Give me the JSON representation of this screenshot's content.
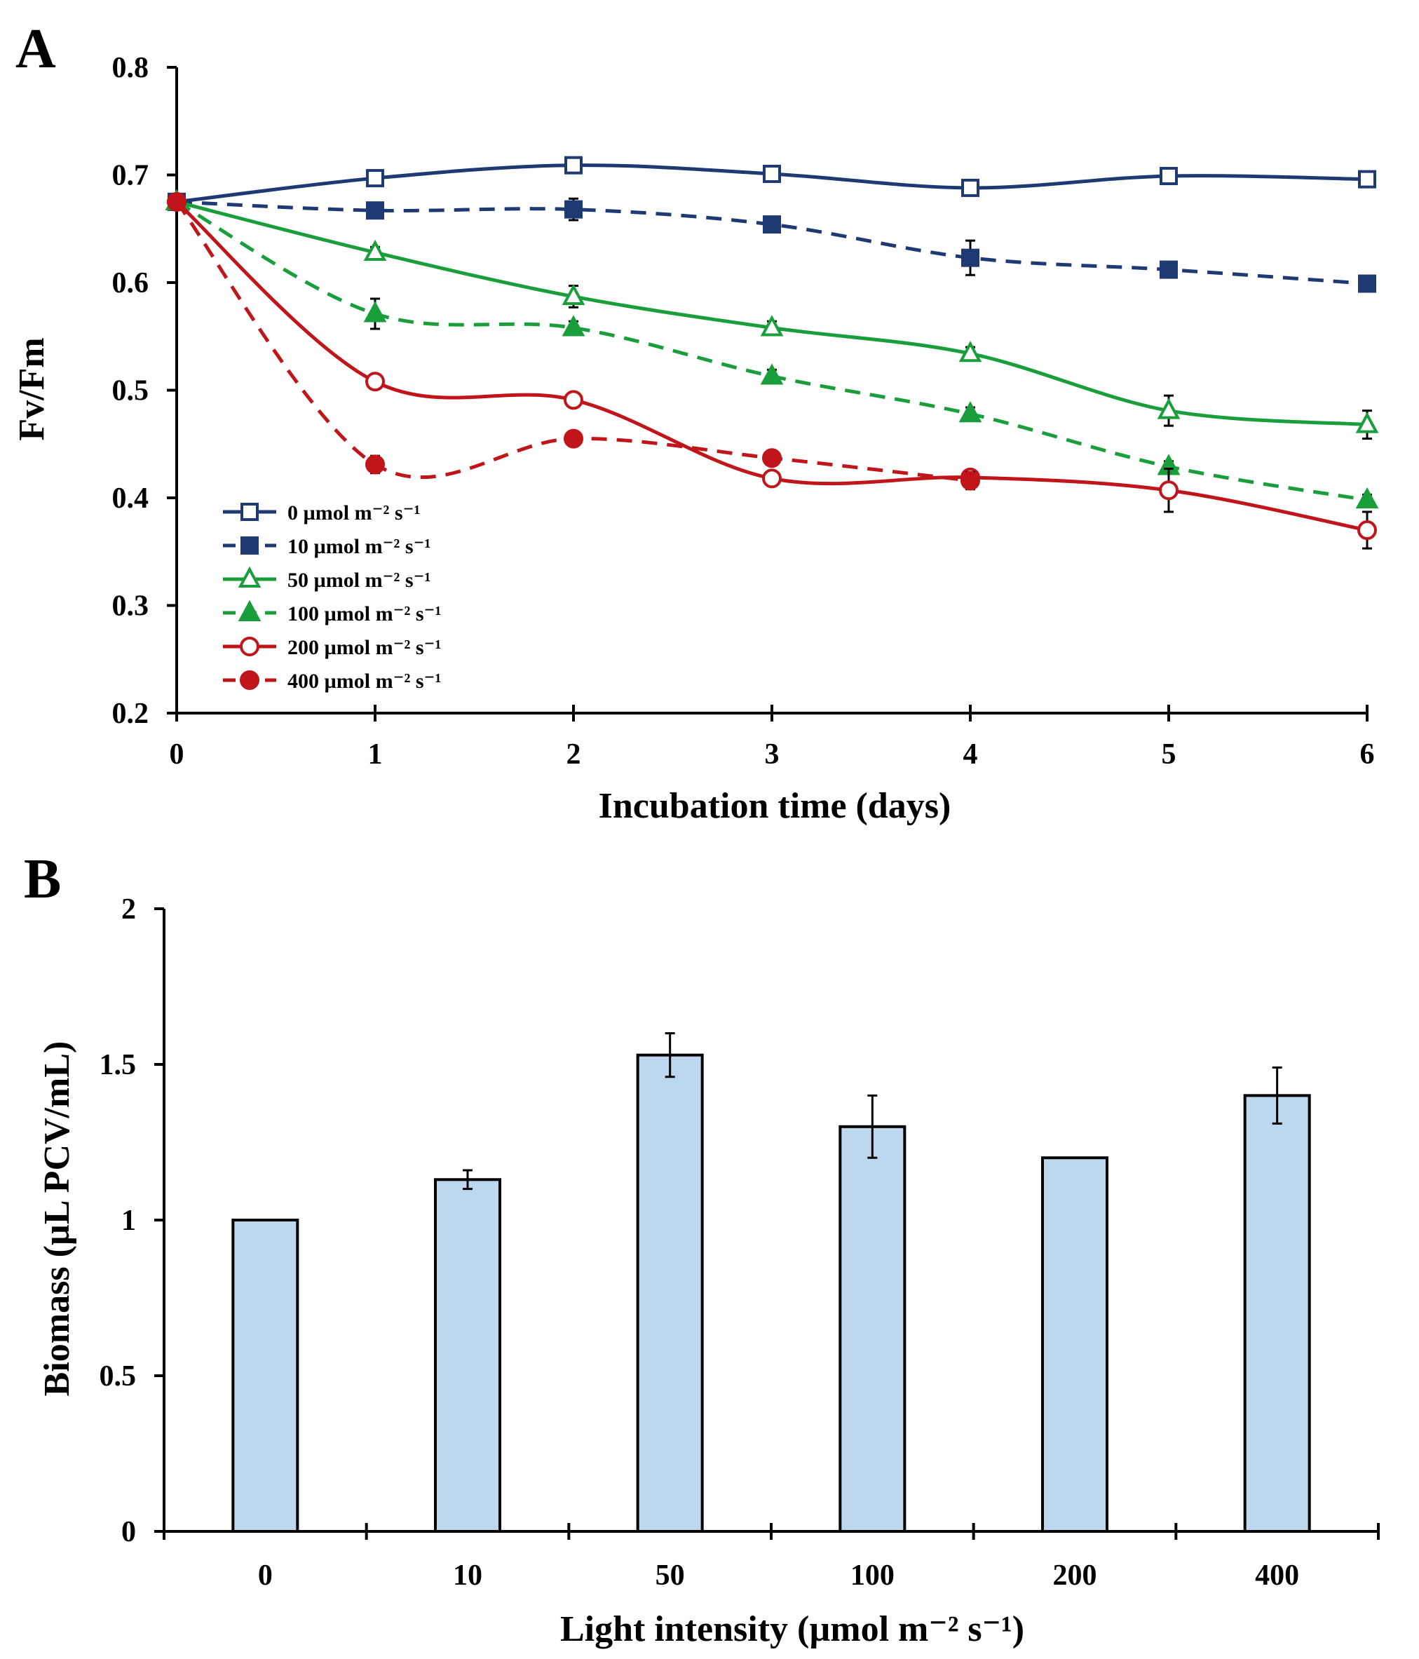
{
  "chart_data": [
    {
      "panel": "A",
      "type": "line",
      "xlabel": "Incubation time (days)",
      "ylabel": "Fv/Fm",
      "x": [
        0,
        1,
        2,
        3,
        4,
        5,
        6
      ],
      "xticks": [
        "0",
        "1",
        "2",
        "3",
        "4",
        "5",
        "6"
      ],
      "ylim": [
        0.2,
        0.8
      ],
      "yticks": [
        "0.2",
        "0.3",
        "0.4",
        "0.5",
        "0.6",
        "0.7",
        "0.8"
      ],
      "grid": false,
      "legend_position": "bottom-left",
      "series": [
        {
          "name": "0 µmol m⁻² s⁻¹",
          "color": "#1F3A73",
          "marker": "square-open",
          "dash": false,
          "values": [
            0.675,
            0.697,
            0.709,
            0.701,
            0.688,
            0.699,
            0.696
          ],
          "errors": [
            0,
            0.004,
            0.004,
            0.004,
            0.005,
            0.004,
            0.004
          ]
        },
        {
          "name": "10 µmol m⁻² s⁻¹",
          "color": "#1F3A73",
          "marker": "square-filled",
          "dash": true,
          "values": [
            0.675,
            0.667,
            0.668,
            0.654,
            0.623,
            0.612,
            0.599
          ],
          "errors": [
            0,
            0.005,
            0.01,
            0.006,
            0.016,
            0.006,
            0.004
          ]
        },
        {
          "name": "50 µmol m⁻² s⁻¹",
          "color": "#1A9E3C",
          "marker": "triangle-open",
          "dash": false,
          "values": [
            0.675,
            0.628,
            0.587,
            0.558,
            0.534,
            0.481,
            0.468
          ],
          "errors": [
            0,
            0.005,
            0.01,
            0.006,
            0.006,
            0.014,
            0.013
          ]
        },
        {
          "name": "100 µmol m⁻² s⁻¹",
          "color": "#1A9E3C",
          "marker": "triangle-filled",
          "dash": true,
          "values": [
            0.675,
            0.571,
            0.558,
            0.513,
            0.478,
            0.429,
            0.398
          ],
          "errors": [
            0,
            0.014,
            0.006,
            0.006,
            0.006,
            0.005,
            0.005
          ]
        },
        {
          "name": "200 µmol m⁻² s⁻¹",
          "color": "#C0151B",
          "marker": "circle-open",
          "dash": false,
          "values": [
            0.675,
            0.508,
            0.491,
            0.418,
            0.419,
            0.407,
            0.37
          ],
          "errors": [
            0,
            0.005,
            0.004,
            0.004,
            0.005,
            0.02,
            0.017
          ]
        },
        {
          "name": "400 µmol m⁻² s⁻¹",
          "color": "#C0151B",
          "marker": "circle-filled",
          "dash": true,
          "values": [
            0.675,
            0.431,
            0.455,
            0.437,
            0.416,
            null,
            null
          ],
          "errors": [
            0,
            0.008,
            0.005,
            0.004,
            0.008,
            0,
            0
          ]
        }
      ]
    },
    {
      "panel": "B",
      "type": "bar",
      "xlabel": "Light intensity (µmol m⁻² s⁻¹)",
      "ylabel": "Biomass (µL PCV/mL)",
      "categories": [
        "0",
        "10",
        "50",
        "100",
        "200",
        "400"
      ],
      "values": [
        1.0,
        1.13,
        1.53,
        1.3,
        1.2,
        1.4
      ],
      "errors": [
        0,
        0.03,
        0.07,
        0.1,
        0,
        0.09
      ],
      "bar_color": "#BDD7EE",
      "ylim": [
        0,
        2
      ],
      "yticks": [
        "0",
        "0.5",
        "1",
        "1.5",
        "2"
      ],
      "grid": false
    }
  ]
}
